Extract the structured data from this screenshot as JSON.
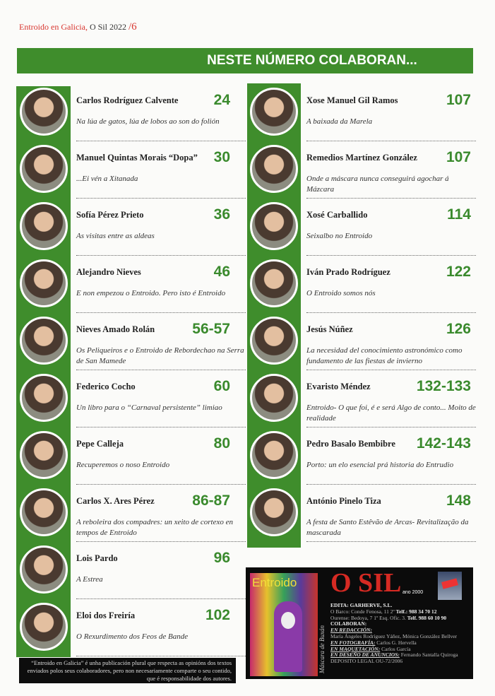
{
  "running_head": {
    "publication": "Entroido en Galicia,",
    "issue": "O Sil 2022",
    "separator": "/",
    "page": "6"
  },
  "banner": "NESTE NÚMERO COLABORAN...",
  "left_entries": [
    {
      "name": "Carlos Rodríguez Calvente",
      "page": "24",
      "title": "Na lúa de gatos, lúa de lobos ao son do folión"
    },
    {
      "name": "Manuel Quintas Morais “Dopa”",
      "page": "30",
      "title": "...Ei vén a Xitanada"
    },
    {
      "name": "Sofía Pérez Prieto",
      "page": "36",
      "title": "As visitas entre as aldeas"
    },
    {
      "name": "Alejandro Nieves",
      "page": "46",
      "title": "E non empezou o Entroido. Pero isto é Entroido"
    },
    {
      "name": "Nieves Amado Rolán",
      "page": "56-57",
      "title": "Os Peliqueiros e o Entroido de Rebordechao na Serra de San Mamede"
    },
    {
      "name": "Federico Cocho",
      "page": "60",
      "title": "Un libro para o “Carnaval persistente” limiao"
    },
    {
      "name": "Pepe Calleja",
      "page": "80",
      "title": "Recuperemos o noso Entroido"
    },
    {
      "name": "Carlos X. Ares Pérez",
      "page": "86-87",
      "title": "A reboleira dos compadres: un xeito de cortexo en tempos de Entroido"
    },
    {
      "name": "Lois Pardo",
      "page": "96",
      "title": "A Estrea"
    },
    {
      "name": "Eloi dos Freiría",
      "page": "102",
      "title": "O Rexurdimento dos Feos de Bande"
    }
  ],
  "right_entries": [
    {
      "name": "Xose Manuel Gil Ramos",
      "page": "107",
      "title": "A baixada da Marela"
    },
    {
      "name": "Remedios Martínez González",
      "page": "107",
      "title": "Onde a máscara nunca conseguirá agochar á Mázcara"
    },
    {
      "name": "Xosé Carballido",
      "page": "114",
      "title": "Seixalbo no Entroido"
    },
    {
      "name": "Iván Prado Rodríguez",
      "page": "122",
      "title": "O Entroido somos nós"
    },
    {
      "name": "Jesús Núñez",
      "page": "126",
      "title": "La necesidad del conocimiento astronómico como fundamento de las fiestas de invierno"
    },
    {
      "name": "Evaristo Méndez",
      "page": "132-133",
      "title": "Entroido- O que foi, é e será Algo de conto... Moito de realidade"
    },
    {
      "name": "Pedro Basalo Bembibre",
      "page": "142-143",
      "title": "Porto: un elo esencial prá historia do Entrudio"
    },
    {
      "name": "António Pinelo Tiza",
      "page": "148",
      "title": "A festa de Santo Estêvão de Arcas- Revitalização da mascarada"
    }
  ],
  "disclaimer": "“Entroido en Galicia” é unha publicación plural que respecta as opinións dos textos enviados polos seus colaboradores, pero non necesariamente comparte o seu contido, que é responsabilidade dos autores.",
  "ad": {
    "cover_title": "Entroido",
    "cover_caption": "Máscara de Buxán",
    "brand": "O SIL",
    "since": "ano 2000",
    "edita": "EDITA: GARHERVE, S.L.",
    "barco": "O Barco: Conde Fenosa, 11 2º",
    "barco_tel": "Telf.: 988 34 70 12",
    "ourense": "Ourense: Bedoya, 7 1º Esq. Ofic. 3.",
    "ourense_tel": "Telf. 988 60 10 90",
    "colaboran": "COLABORAN:",
    "redaccion_label": "EN REDACCIÓN:",
    "redaccion": "María Ángeles Rodríguez Yáñez, Mónica González Bellver",
    "fotografia_label": "EN FOTOGRAFÍA:",
    "fotografia": "Carlos G. Hervella",
    "maquetacion_label": "EN MAQUETACIÓN:",
    "maquetacion": "Carlos García",
    "anuncios_label": "EN DESEÑO DE ANUNCIOS:",
    "anuncios": "Fernando Santalla Quiroga",
    "deposito": "DEPOSITO LEGAL OU-72/2006"
  }
}
